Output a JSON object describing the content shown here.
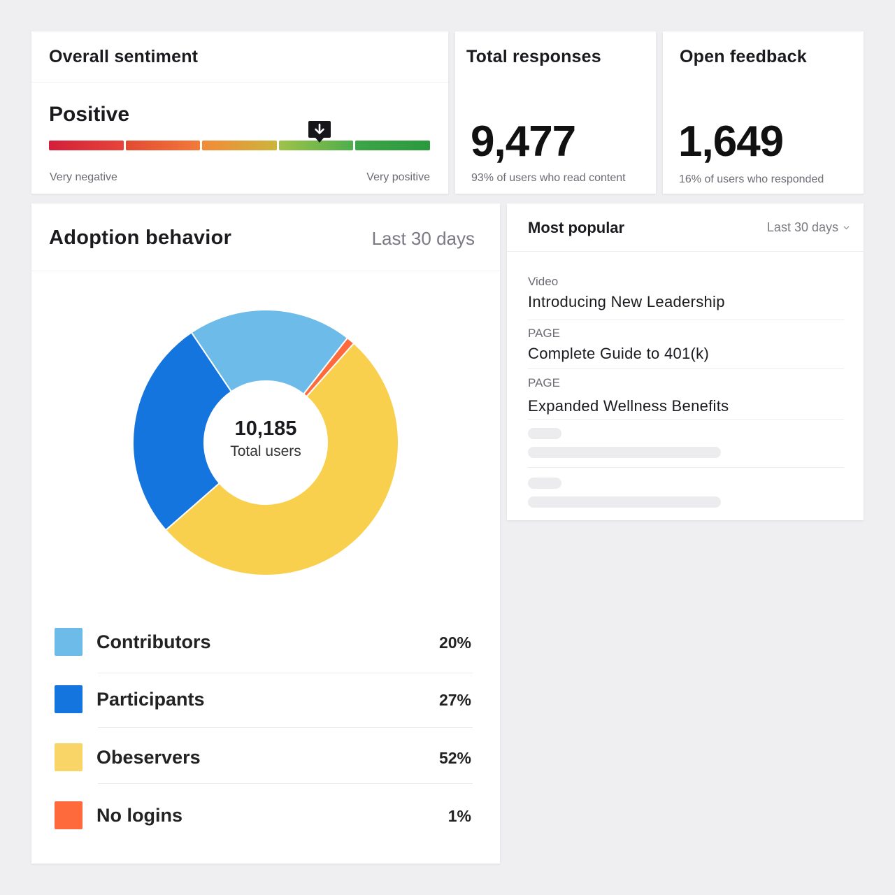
{
  "sentiment": {
    "title": "Overall sentiment",
    "value": "Positive",
    "low_label": "Very negative",
    "high_label": "Very positive",
    "marker_position": 0.71,
    "scale_colors": [
      [
        "#d31f3a",
        "#e6453a"
      ],
      [
        "#e24a33",
        "#f27a3a"
      ],
      [
        "#f28a3a",
        "#cdb43c"
      ],
      [
        "#9fc24a",
        "#4fae4c"
      ],
      [
        "#3ea448",
        "#2a9a3c"
      ]
    ],
    "marker_icon": "arrow-down-icon"
  },
  "responses": {
    "title": "Total responses",
    "value": "9,477",
    "subtitle": "93% of users who read content"
  },
  "feedback": {
    "title": "Open feedback",
    "value": "1,649",
    "subtitle": "16% of users who responded"
  },
  "adoption": {
    "title": "Adoption behavior",
    "range": "Last 30 days",
    "total_value": "10,185",
    "total_label": "Total users",
    "legend": [
      {
        "name": "Contributors",
        "pct": "20%",
        "color": "#6cbbe9"
      },
      {
        "name": "Participants",
        "pct": "27%",
        "color": "#1475de"
      },
      {
        "name": "Obeservers",
        "pct": "52%",
        "color": "#f9d567"
      },
      {
        "name": "No logins",
        "pct": "1%",
        "color": "#ff6a3d"
      }
    ]
  },
  "chart_data": {
    "type": "pie",
    "categories": [
      "Contributors",
      "No logins",
      "Obeservers",
      "Participants"
    ],
    "values": [
      20,
      1,
      52,
      27
    ],
    "colors": [
      "#6cbbe9",
      "#ff6a3d",
      "#f9d04d",
      "#1475de"
    ],
    "start_angle_deg": -34
  },
  "popular": {
    "title": "Most popular",
    "range": "Last 30 days",
    "items": [
      {
        "type": "Video",
        "name": "Introducing New Leadership"
      },
      {
        "type": "PAGE",
        "name": "Complete Guide to 401(k)"
      },
      {
        "type": "PAGE",
        "name": "Expanded Wellness Benefits"
      }
    ]
  }
}
